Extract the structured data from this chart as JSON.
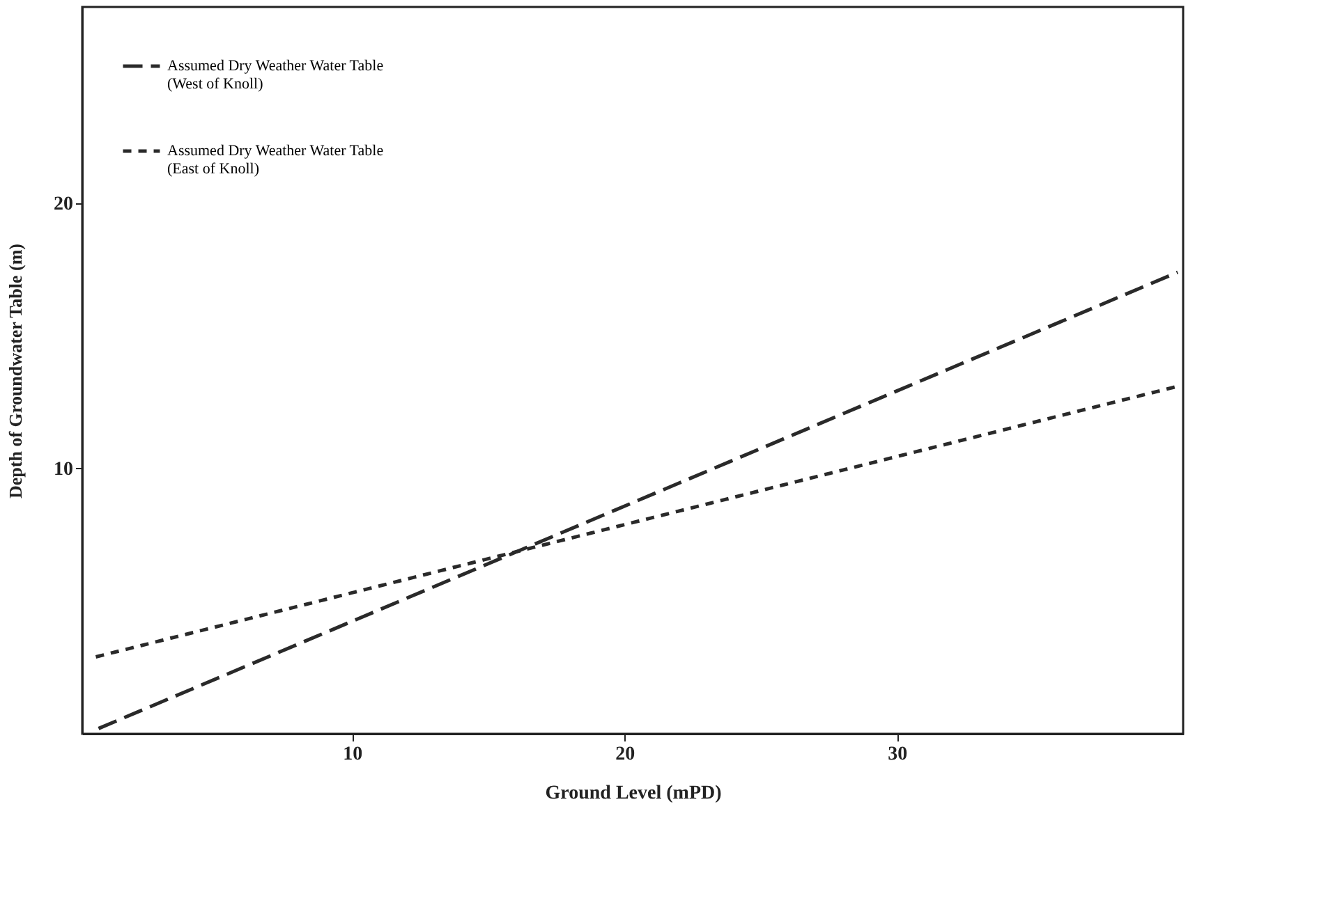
{
  "chart_data": {
    "type": "line",
    "xlabel": "Ground Level (mPD)",
    "ylabel": "Depth of Groundwater Table (m)",
    "xlim": [
      0.1,
      40.5
    ],
    "ylim": [
      0,
      27.4
    ],
    "xticks": [
      10,
      20,
      30
    ],
    "yticks": [
      10,
      20
    ],
    "grid": false,
    "legend": "top left",
    "marker": "none",
    "series": [
      {
        "name": "Assumed Dry Weather Water Table\n(West of Knoll)",
        "color": "#2a2a2a",
        "x": [
          0.7,
          40.3
        ],
        "values": [
          0.2,
          17.4
        ],
        "line_style": "dashed"
      },
      {
        "name": "Assumed Dry Weather Water Table\n(East of Knoll)",
        "color": "#2a2a2a",
        "x": [
          0.6,
          40.3
        ],
        "values": [
          2.9,
          13.1
        ],
        "line_style": "dotted"
      }
    ]
  }
}
